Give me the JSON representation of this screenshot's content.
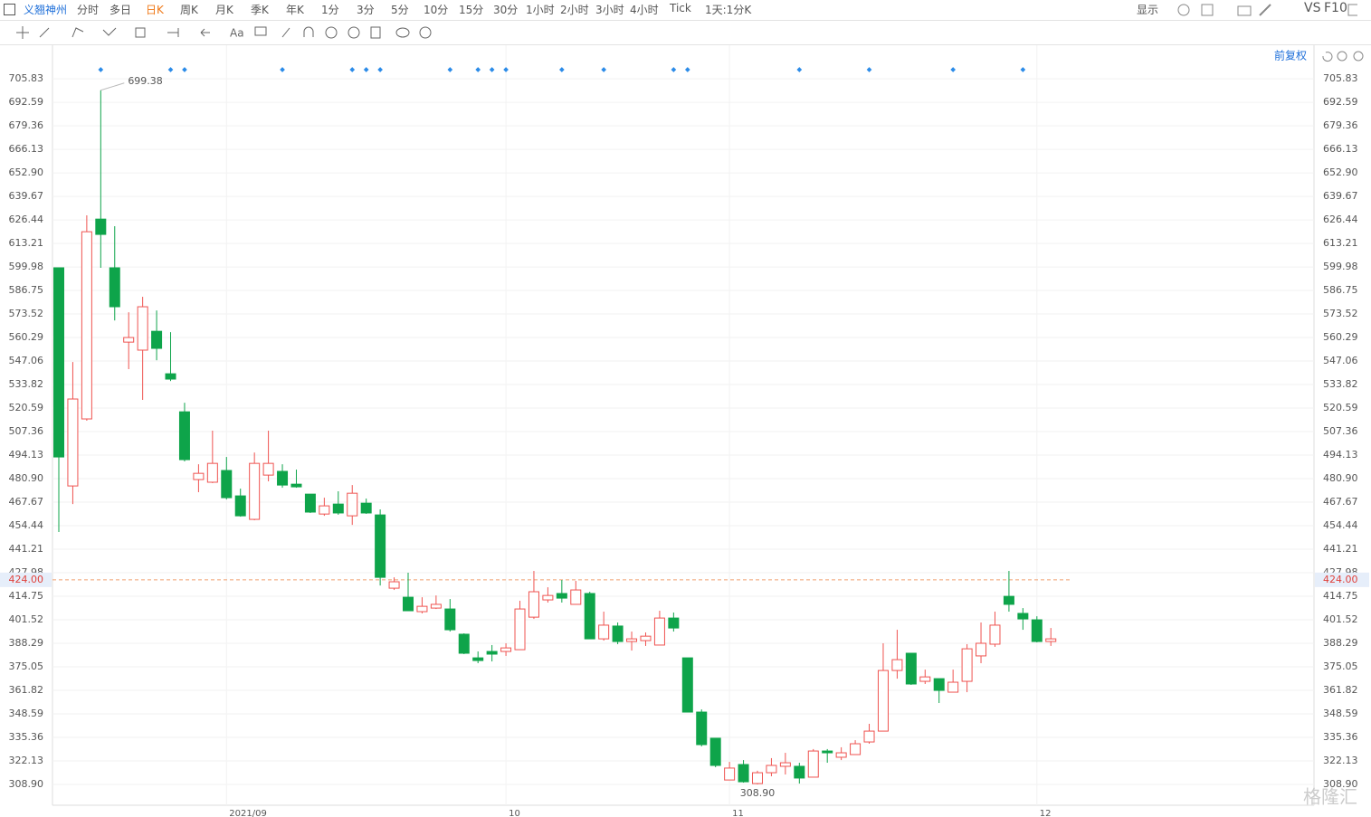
{
  "ui": {
    "stock_name": "义翘神州",
    "periods": [
      "分时",
      "多日",
      "日K",
      "周K",
      "月K",
      "季K",
      "年K",
      "1分",
      "3分",
      "5分",
      "10分",
      "15分",
      "30分",
      "1小时",
      "2小时",
      "3小时",
      "4小时",
      "Tick",
      "1天:1分K"
    ],
    "display": "显示",
    "vs": "VS",
    "f10": "F10",
    "adjust": "前复权",
    "watermark": "格隆汇"
  },
  "chart_data": {
    "type": "candlestick",
    "categories": [
      null,
      null,
      null,
      null,
      null,
      null,
      null,
      null,
      null,
      null,
      null,
      null,
      "2021/09",
      null,
      null,
      null,
      null,
      null,
      null,
      null,
      null,
      null,
      null,
      null,
      null,
      null,
      null,
      null,
      null,
      null,
      null,
      null,
      "10",
      null,
      null,
      null,
      null,
      null,
      null,
      null,
      null,
      null,
      null,
      null,
      null,
      null,
      null,
      null,
      "11",
      null,
      null,
      null,
      null,
      null,
      null,
      null,
      null,
      null,
      null,
      null,
      null,
      null,
      null,
      null,
      null,
      null,
      null,
      null,
      null,
      null,
      "12",
      null
    ],
    "open": [
      599.5,
      476.8,
      514.5,
      626.9,
      599.5,
      557.7,
      553.2,
      563.8,
      539.9,
      518.5,
      480.4,
      478.9,
      485.5,
      471.2,
      458.0,
      482.9,
      485.0,
      477.8,
      472.2,
      461.0,
      466.6,
      460.0,
      467.1,
      460.5,
      419.3,
      414.2,
      406.1,
      408.1,
      407.6,
      393.4,
      380.1,
      383.7,
      383.7,
      384.7,
      403.0,
      412.7,
      416.3,
      410.2,
      416.3,
      390.8,
      398.0,
      389.3,
      389.8,
      387.3,
      402.5,
      380.1,
      349.6,
      334.9,
      311.4,
      320.1,
      309.4,
      315.5,
      319.1,
      319.1,
      313.0,
      327.7,
      324.2,
      325.7,
      332.8,
      338.9,
      373.0,
      382.7,
      366.9,
      368.4,
      360.8,
      366.9,
      381.2,
      387.8,
      414.7,
      405.1,
      401.5,
      389.3
    ],
    "high": [
      599.5,
      546.5,
      629.0,
      699.38,
      622.9,
      574.5,
      583.2,
      575.5,
      563.3,
      523.6,
      489.0,
      507.9,
      493.1,
      475.3,
      495.6,
      507.9,
      489.0,
      486.0,
      472.2,
      470.2,
      473.8,
      477.3,
      469.7,
      463.6,
      425.4,
      428.0,
      414.2,
      415.2,
      413.2,
      393.9,
      383.7,
      387.3,
      388.3,
      412.2,
      429.0,
      419.8,
      423.9,
      423.4,
      417.3,
      406.1,
      400.0,
      394.9,
      394.4,
      406.6,
      405.6,
      380.1,
      351.1,
      334.9,
      321.6,
      322.6,
      316.6,
      323.7,
      326.7,
      321.1,
      328.8,
      328.8,
      329.8,
      333.8,
      343.0,
      388.3,
      395.9,
      382.7,
      373.5,
      368.4,
      373.5,
      387.8,
      400.0,
      406.1,
      429.0,
      408.1,
      403.5,
      396.9
    ],
    "low": [
      450.9,
      466.6,
      513.5,
      599.5,
      569.9,
      542.5,
      525.2,
      547.5,
      535.8,
      490.6,
      473.3,
      478.4,
      469.2,
      459.5,
      457.5,
      479.4,
      475.8,
      475.8,
      461.6,
      460.0,
      460.6,
      454.9,
      461.1,
      420.8,
      418.3,
      406.6,
      405.1,
      407.6,
      394.9,
      382.2,
      377.1,
      378.1,
      381.2,
      384.7,
      402.0,
      411.2,
      411.2,
      410.2,
      390.8,
      389.8,
      387.8,
      384.2,
      386.8,
      387.3,
      394.9,
      349.6,
      330.3,
      318.6,
      311.4,
      309.9,
      308.9,
      313.5,
      314.5,
      309.4,
      313.0,
      321.1,
      322.6,
      325.7,
      331.8,
      338.9,
      368.4,
      364.9,
      365.4,
      354.7,
      360.8,
      360.8,
      377.1,
      386.3,
      406.1,
      395.9,
      388.8,
      386.8
    ],
    "close": [
      493.1,
      525.7,
      619.8,
      618.3,
      577.6,
      560.3,
      577.6,
      554.2,
      536.9,
      491.6,
      483.9,
      489.5,
      470.2,
      460.0,
      489.5,
      489.5,
      477.3,
      476.3,
      462.1,
      465.6,
      461.6,
      472.7,
      461.6,
      425.4,
      422.9,
      406.6,
      409.1,
      410.2,
      395.9,
      382.7,
      378.6,
      382.2,
      385.7,
      407.6,
      417.3,
      415.2,
      413.7,
      418.3,
      390.8,
      398.5,
      389.3,
      390.8,
      392.3,
      402.5,
      396.9,
      349.6,
      331.3,
      319.6,
      318.1,
      310.4,
      315.5,
      319.6,
      321.1,
      312.5,
      327.7,
      326.7,
      326.7,
      331.8,
      338.9,
      373.0,
      379.1,
      365.4,
      369.4,
      361.8,
      366.4,
      385.2,
      388.3,
      398.5,
      410.2,
      402.0,
      389.3,
      390.8
    ],
    "up_color": "#ef5350",
    "down_color": "#0ea44a",
    "high_label": "699.38",
    "low_label": "308.90",
    "current_price": {
      "value": 424,
      "label": "424.00"
    },
    "ylim": [
      297.2,
      724.7
    ],
    "yticks": [
      705.83,
      692.59,
      679.36,
      666.13,
      {
        "value": 652.9,
        "label": "652.90"
      },
      639.67,
      626.44,
      613.21,
      599.98,
      586.75,
      573.52,
      560.29,
      547.06,
      533.82,
      520.59,
      507.36,
      494.13,
      {
        "value": 480.9,
        "label": "480.90"
      },
      467.67,
      454.44,
      441.21,
      427.98,
      414.75,
      401.52,
      388.29,
      375.05,
      361.82,
      348.59,
      335.36,
      322.13,
      {
        "value": 308.9,
        "label": "308.90"
      }
    ],
    "grid": true
  }
}
